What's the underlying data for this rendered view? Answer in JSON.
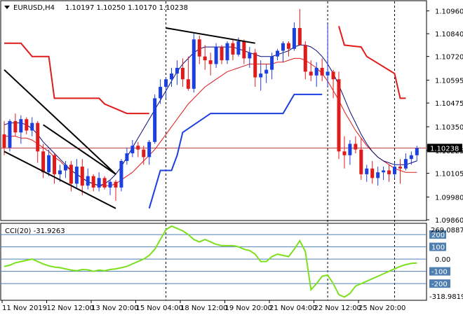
{
  "header": {
    "symbol": "EURUSD,H4",
    "ohlc": "1.10197 1.10250 1.10170 1.10238"
  },
  "colors": {
    "bull": "#1c3fe0",
    "bear": "#e01b1b",
    "wick": "#000000",
    "ma_fast": "#0a0a7a",
    "ma_slow": "#e01b1b",
    "channel_upper": "#e01b1b",
    "channel_lower": "#1c3fe0",
    "trendline": "#000000",
    "cci": "#7de01e",
    "level_line": "#4f7fb0",
    "price_line": "#c04040",
    "price_tag_bg": "#000000"
  },
  "price_axis": {
    "ticks": [
      "1.10960",
      "1.10840",
      "1.10720",
      "1.10595",
      "1.10475",
      "1.10350",
      "1.10225",
      "1.10105",
      "1.09980",
      "1.09860"
    ],
    "current_price": "1.10238"
  },
  "time_axis": {
    "labels": [
      "11 Nov 2019",
      "12 Nov 12:00",
      "13 Nov 20:00",
      "15 Nov 04:00",
      "18 Nov 12:00",
      "19 Nov 20:00",
      "21 Nov 04:00",
      "22 Nov 12:00",
      "25 Nov 20:00"
    ]
  },
  "cci_panel": {
    "title": "CCI(20) -31.9263",
    "max_label": "269.0887",
    "min_label": "-318.9819",
    "levels": [
      "200",
      "100",
      "0.00",
      "-100",
      "-200"
    ]
  },
  "chart_data": [
    {
      "type": "candlestick",
      "title": "EURUSD,H4",
      "ylim": [
        1.0986,
        1.1101
      ],
      "candles": [
        {
          "o": 1.1031,
          "h": 1.1038,
          "l": 1.102,
          "c": 1.1024
        },
        {
          "o": 1.1024,
          "h": 1.1039,
          "l": 1.1022,
          "c": 1.1038
        },
        {
          "o": 1.1038,
          "h": 1.1042,
          "l": 1.103,
          "c": 1.1032
        },
        {
          "o": 1.1032,
          "h": 1.1041,
          "l": 1.1026,
          "c": 1.1039
        },
        {
          "o": 1.1039,
          "h": 1.104,
          "l": 1.1031,
          "c": 1.1033
        },
        {
          "o": 1.1033,
          "h": 1.104,
          "l": 1.103,
          "c": 1.1037
        },
        {
          "o": 1.1037,
          "h": 1.1038,
          "l": 1.1016,
          "c": 1.1022
        },
        {
          "o": 1.1022,
          "h": 1.1026,
          "l": 1.1008,
          "c": 1.1011
        },
        {
          "o": 1.1011,
          "h": 1.1023,
          "l": 1.1009,
          "c": 1.102
        },
        {
          "o": 1.102,
          "h": 1.1021,
          "l": 1.1005,
          "c": 1.101
        },
        {
          "o": 1.101,
          "h": 1.1015,
          "l": 1.1006,
          "c": 1.1012
        },
        {
          "o": 1.1012,
          "h": 1.1017,
          "l": 1.1008,
          "c": 1.1015
        },
        {
          "o": 1.1015,
          "h": 1.1017,
          "l": 1.1001,
          "c": 1.1005
        },
        {
          "o": 1.1005,
          "h": 1.1018,
          "l": 1.1003,
          "c": 1.1014
        },
        {
          "o": 1.1014,
          "h": 1.1018,
          "l": 1.0999,
          "c": 1.1004
        },
        {
          "o": 1.1004,
          "h": 1.1013,
          "l": 1.1002,
          "c": 1.1009
        },
        {
          "o": 1.1009,
          "h": 1.101,
          "l": 1.1001,
          "c": 1.1003
        },
        {
          "o": 1.1003,
          "h": 1.1011,
          "l": 1.1001,
          "c": 1.1008
        },
        {
          "o": 1.1008,
          "h": 1.1009,
          "l": 1.1002,
          "c": 1.1003
        },
        {
          "o": 1.1003,
          "h": 1.1007,
          "l": 1.0999,
          "c": 1.1006
        },
        {
          "o": 1.1006,
          "h": 1.1007,
          "l": 1.0996,
          "c": 1.1003
        },
        {
          "o": 1.1003,
          "h": 1.1018,
          "l": 1.1001,
          "c": 1.1017
        },
        {
          "o": 1.1017,
          "h": 1.1024,
          "l": 1.1015,
          "c": 1.1021
        },
        {
          "o": 1.1021,
          "h": 1.1028,
          "l": 1.1019,
          "c": 1.1025
        },
        {
          "o": 1.1025,
          "h": 1.1027,
          "l": 1.1019,
          "c": 1.1023
        },
        {
          "o": 1.1023,
          "h": 1.1025,
          "l": 1.1015,
          "c": 1.1019
        },
        {
          "o": 1.1019,
          "h": 1.1028,
          "l": 1.1015,
          "c": 1.1027
        },
        {
          "o": 1.1027,
          "h": 1.1052,
          "l": 1.1026,
          "c": 1.105
        },
        {
          "o": 1.105,
          "h": 1.106,
          "l": 1.1047,
          "c": 1.1056
        },
        {
          "o": 1.1056,
          "h": 1.1061,
          "l": 1.105,
          "c": 1.106
        },
        {
          "o": 1.106,
          "h": 1.1066,
          "l": 1.1056,
          "c": 1.1063
        },
        {
          "o": 1.1063,
          "h": 1.107,
          "l": 1.1057,
          "c": 1.1066
        },
        {
          "o": 1.1066,
          "h": 1.1071,
          "l": 1.1056,
          "c": 1.106
        },
        {
          "o": 1.106,
          "h": 1.1072,
          "l": 1.1054,
          "c": 1.1055
        },
        {
          "o": 1.1055,
          "h": 1.1084,
          "l": 1.1053,
          "c": 1.1081
        },
        {
          "o": 1.1081,
          "h": 1.1083,
          "l": 1.1068,
          "c": 1.1072
        },
        {
          "o": 1.1072,
          "h": 1.1078,
          "l": 1.1065,
          "c": 1.107
        },
        {
          "o": 1.107,
          "h": 1.1074,
          "l": 1.1062,
          "c": 1.1068
        },
        {
          "o": 1.1068,
          "h": 1.1079,
          "l": 1.1066,
          "c": 1.1077
        },
        {
          "o": 1.1077,
          "h": 1.1078,
          "l": 1.1068,
          "c": 1.107
        },
        {
          "o": 1.107,
          "h": 1.108,
          "l": 1.1068,
          "c": 1.1079
        },
        {
          "o": 1.1079,
          "h": 1.1081,
          "l": 1.107,
          "c": 1.1073
        },
        {
          "o": 1.1073,
          "h": 1.1082,
          "l": 1.1072,
          "c": 1.108
        },
        {
          "o": 1.108,
          "h": 1.1081,
          "l": 1.1068,
          "c": 1.1071
        },
        {
          "o": 1.1071,
          "h": 1.1077,
          "l": 1.1066,
          "c": 1.1074
        },
        {
          "o": 1.1074,
          "h": 1.1076,
          "l": 1.1056,
          "c": 1.1061
        },
        {
          "o": 1.1061,
          "h": 1.107,
          "l": 1.1054,
          "c": 1.1063
        },
        {
          "o": 1.1063,
          "h": 1.1068,
          "l": 1.1058,
          "c": 1.1065
        },
        {
          "o": 1.1065,
          "h": 1.1074,
          "l": 1.106,
          "c": 1.1072
        },
        {
          "o": 1.1072,
          "h": 1.1076,
          "l": 1.107,
          "c": 1.1075
        },
        {
          "o": 1.1075,
          "h": 1.108,
          "l": 1.1069,
          "c": 1.1079
        },
        {
          "o": 1.1079,
          "h": 1.108,
          "l": 1.1072,
          "c": 1.1076
        },
        {
          "o": 1.1076,
          "h": 1.109,
          "l": 1.1075,
          "c": 1.1087
        },
        {
          "o": 1.1087,
          "h": 1.1097,
          "l": 1.1078,
          "c": 1.1078
        },
        {
          "o": 1.1078,
          "h": 1.108,
          "l": 1.106,
          "c": 1.1064
        },
        {
          "o": 1.1064,
          "h": 1.107,
          "l": 1.1059,
          "c": 1.1062
        },
        {
          "o": 1.1062,
          "h": 1.1069,
          "l": 1.1056,
          "c": 1.1066
        },
        {
          "o": 1.1066,
          "h": 1.1071,
          "l": 1.1059,
          "c": 1.1062
        },
        {
          "o": 1.1062,
          "h": 1.1089,
          "l": 1.1056,
          "c": 1.1064
        },
        {
          "o": 1.1064,
          "h": 1.1065,
          "l": 1.105,
          "c": 1.106
        },
        {
          "o": 1.106,
          "h": 1.1064,
          "l": 1.1018,
          "c": 1.1022
        },
        {
          "o": 1.1022,
          "h": 1.103,
          "l": 1.1013,
          "c": 1.102
        },
        {
          "o": 1.102,
          "h": 1.1028,
          "l": 1.1015,
          "c": 1.1026
        },
        {
          "o": 1.1026,
          "h": 1.103,
          "l": 1.1021,
          "c": 1.1023
        },
        {
          "o": 1.1023,
          "h": 1.1029,
          "l": 1.1007,
          "c": 1.101
        },
        {
          "o": 1.101,
          "h": 1.1015,
          "l": 1.1006,
          "c": 1.1013
        },
        {
          "o": 1.1013,
          "h": 1.1017,
          "l": 1.1005,
          "c": 1.1008
        },
        {
          "o": 1.1008,
          "h": 1.1014,
          "l": 1.1004,
          "c": 1.1011
        },
        {
          "o": 1.1011,
          "h": 1.1014,
          "l": 1.1007,
          "c": 1.1012
        },
        {
          "o": 1.1012,
          "h": 1.1015,
          "l": 1.1006,
          "c": 1.101
        },
        {
          "o": 1.101,
          "h": 1.1016,
          "l": 1.1008,
          "c": 1.1014
        },
        {
          "o": 1.1014,
          "h": 1.1018,
          "l": 1.1005,
          "c": 1.1013
        },
        {
          "o": 1.1013,
          "h": 1.1021,
          "l": 1.1012,
          "c": 1.1018
        },
        {
          "o": 1.1018,
          "h": 1.1022,
          "l": 1.1015,
          "c": 1.102
        },
        {
          "o": 1.102,
          "h": 1.1025,
          "l": 1.1017,
          "c": 1.10238
        }
      ],
      "overlays": {
        "ma_fast": [
          1.1036,
          1.1037,
          1.1037,
          1.1037,
          1.1036,
          1.1034,
          1.1031,
          1.1027,
          1.1024,
          1.1021,
          1.1018,
          1.1015,
          1.1012,
          1.101,
          1.1008,
          1.1006,
          1.1005,
          1.1004,
          1.1005,
          1.1007,
          1.101,
          1.1014,
          1.1019,
          1.1024,
          1.1029,
          1.1034,
          1.1039,
          1.1044,
          1.1049,
          1.1054,
          1.1059,
          1.1064,
          1.1068,
          1.1071,
          1.1074,
          1.1076,
          1.1077,
          1.1077,
          1.1077,
          1.1077,
          1.1077,
          1.1077,
          1.1076,
          1.1075,
          1.1074,
          1.1073,
          1.1072,
          1.1072,
          1.1072,
          1.1073,
          1.1074,
          1.1075,
          1.1077,
          1.1078,
          1.1078,
          1.1077,
          1.1075,
          1.1072,
          1.1068,
          1.1063,
          1.1057,
          1.105,
          1.1043,
          1.1037,
          1.1031,
          1.1026,
          1.1022,
          1.1019,
          1.1017,
          1.1016,
          1.1015,
          1.1015,
          1.1015,
          1.1016,
          1.1017
        ],
        "ma_slow": [
          1.103,
          1.103,
          1.103,
          1.1029,
          1.1029,
          1.1028,
          1.1026,
          1.1024,
          1.1022,
          1.1019,
          1.1017,
          1.1014,
          1.1012,
          1.101,
          1.1008,
          1.1006,
          1.1005,
          1.1004,
          1.1004,
          1.1004,
          1.1005,
          1.1007,
          1.1009,
          1.1011,
          1.1014,
          1.1017,
          1.102,
          1.1023,
          1.1027,
          1.1031,
          1.1035,
          1.1039,
          1.1043,
          1.1047,
          1.105,
          1.1053,
          1.1056,
          1.1058,
          1.106,
          1.1062,
          1.1064,
          1.1065,
          1.1066,
          1.1067,
          1.1068,
          1.1068,
          1.1068,
          1.1068,
          1.1068,
          1.1069,
          1.1069,
          1.107,
          1.1071,
          1.1071,
          1.107,
          1.1068,
          1.1066,
          1.1063,
          1.1059,
          1.1054,
          1.1049,
          1.1043,
          1.1038,
          1.1033,
          1.1029,
          1.1025,
          1.1022,
          1.1019,
          1.1017,
          1.1015,
          1.1013,
          1.1012,
          1.1011,
          1.1011,
          1.1011
        ],
        "channel_upper": [
          [
            0,
            1.1079
          ],
          [
            3,
            1.1079
          ],
          [
            5,
            1.1072
          ],
          [
            8,
            1.1072
          ],
          [
            9,
            1.105
          ],
          [
            17,
            1.105
          ],
          [
            18,
            1.1047
          ],
          [
            22,
            1.1042
          ],
          [
            26,
            1.1042
          ],
          [
            null,
            null
          ],
          [
            60,
            1.1088
          ],
          [
            61,
            1.1078
          ],
          [
            64,
            1.1077
          ],
          [
            65,
            1.1072
          ],
          [
            70,
            1.1063
          ],
          [
            71,
            1.105
          ],
          [
            72,
            1.105
          ]
        ],
        "channel_lower": [
          [
            26,
            1.0992
          ],
          [
            28,
            1.1012
          ],
          [
            30,
            1.1012
          ],
          [
            31,
            1.102
          ],
          [
            32,
            1.1032
          ],
          [
            37,
            1.1042
          ],
          [
            43,
            1.1042
          ],
          [
            50,
            1.1042
          ],
          [
            52,
            1.1052
          ],
          [
            57,
            1.1052
          ]
        ]
      },
      "trendlines": [
        {
          "x1": 0,
          "y1": 1.1065,
          "x2": 20,
          "y2": 1.101
        },
        {
          "x1": 0,
          "y1": 1.1022,
          "x2": 20,
          "y2": 1.0992
        },
        {
          "x1": 7,
          "y1": 1.1036,
          "x2": 20,
          "y2": 1.101
        },
        {
          "x1": 29,
          "y1": 1.1087,
          "x2": 45,
          "y2": 1.1079
        }
      ],
      "vlines": [
        29,
        58,
        70
      ]
    },
    {
      "type": "line",
      "title": "CCI(20) -31.9263",
      "ylim": [
        -318.9819,
        269.0887
      ],
      "series": [
        {
          "values": [
            -60,
            -50,
            -30,
            -20,
            -10,
            0,
            -20,
            -40,
            -55,
            -65,
            -70,
            -80,
            -90,
            -95,
            -85,
            -88,
            -100,
            -90,
            -95,
            -85,
            -80,
            -70,
            -60,
            -40,
            -20,
            0,
            30,
            80,
            160,
            240,
            269,
            250,
            230,
            200,
            160,
            140,
            160,
            140,
            120,
            110,
            110,
            110,
            100,
            80,
            70,
            40,
            -20,
            -20,
            20,
            40,
            30,
            20,
            80,
            150,
            60,
            -250,
            -200,
            -140,
            -130,
            -200,
            -290,
            -310,
            -280,
            -220,
            -200,
            -180,
            -160,
            -140,
            -120,
            -100,
            -80,
            -60,
            -45,
            -35,
            -32
          ]
        }
      ]
    }
  ]
}
